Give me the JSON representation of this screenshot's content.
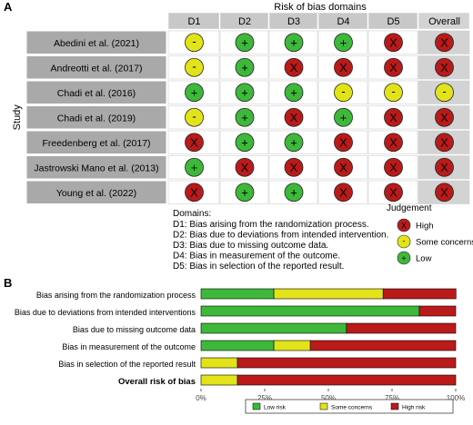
{
  "panel_a": {
    "label": "A",
    "title": "Risk of bias domains",
    "y_axis_label": "Study",
    "domains": [
      "D1",
      "D2",
      "D3",
      "D4",
      "D5",
      "Overall"
    ],
    "studies": [
      {
        "name": "Abedini et al. (2021)",
        "judgements": [
          "some",
          "low",
          "low",
          "low",
          "high",
          "high"
        ]
      },
      {
        "name": "Andreotti et al. (2017)",
        "judgements": [
          "some",
          "low",
          "high",
          "high",
          "high",
          "high"
        ]
      },
      {
        "name": "Chadi et al. (2016)",
        "judgements": [
          "low",
          "low",
          "low",
          "some",
          "some",
          "some"
        ]
      },
      {
        "name": "Chadi et al. (2019)",
        "judgements": [
          "some",
          "low",
          "high",
          "low",
          "high",
          "high"
        ]
      },
      {
        "name": "Freedenberg et al. (2017)",
        "judgements": [
          "high",
          "low",
          "low",
          "high",
          "high",
          "high"
        ]
      },
      {
        "name": "Jastrowski Mano et al. (2013)",
        "judgements": [
          "low",
          "high",
          "high",
          "high",
          "high",
          "high"
        ]
      },
      {
        "name": "Young et al. (2022)",
        "judgements": [
          "high",
          "low",
          "low",
          "high",
          "high",
          "high"
        ]
      }
    ],
    "symbols": {
      "low": "+",
      "some": "-",
      "high": "X"
    },
    "domain_notes_title": "Domains:",
    "domain_notes": [
      "D1: Bias arising from the randomization process.",
      "D2: Bias due to deviations from intended intervention.",
      "D3: Bias due to missing outcome data.",
      "D4: Bias in measurement of the outcome.",
      "D5: Bias in selection of the reported result."
    ],
    "judgement_legend_title": "Judgement",
    "judgement_legend": [
      {
        "key": "high",
        "label": "High"
      },
      {
        "key": "some",
        "label": "Some concerns"
      },
      {
        "key": "low",
        "label": "Low"
      }
    ]
  },
  "chart_data": {
    "type": "bar",
    "orientation": "horizontal-stacked-percent",
    "panel_label": "B",
    "categories": [
      "Bias arising from the randomization process",
      "Bias due to deviations from intended interventions",
      "Bias due to missing outcome data",
      "Bias in measurement of the outcome",
      "Bias in selection of the reported result",
      "Overall risk of bias"
    ],
    "bold_category": "Overall risk of bias",
    "series": [
      {
        "name": "Low risk",
        "values": [
          28.6,
          85.7,
          57.1,
          28.6,
          0,
          0
        ]
      },
      {
        "name": "Some concerns",
        "values": [
          42.9,
          0,
          0,
          14.3,
          14.3,
          14.3
        ]
      },
      {
        "name": "High risk",
        "values": [
          28.6,
          14.3,
          42.9,
          57.1,
          85.7,
          85.7
        ]
      }
    ],
    "xlim": [
      0,
      100
    ],
    "x_ticks": [
      "0%",
      "25%",
      "50%",
      "75%",
      "100%"
    ],
    "legend_position": "bottom"
  },
  "colors": {
    "low": "#3db83a",
    "some": "#e3e31a",
    "high": "#bb1a1a",
    "header_bg": "#c8c8c8",
    "study_bg": "#a9a9a9",
    "overall_bg": "#d3d3d3"
  }
}
